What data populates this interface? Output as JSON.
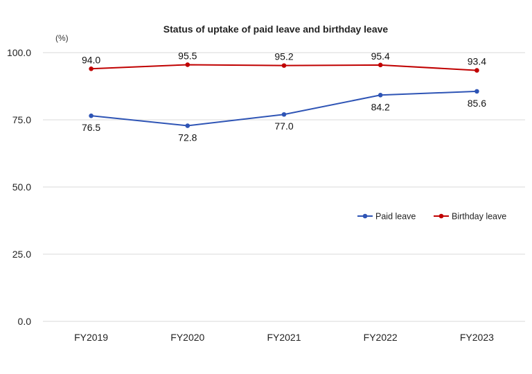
{
  "chart_data": {
    "type": "line",
    "title": "Status of uptake of paid leave and birthday leave",
    "unit_label": "(%)",
    "categories": [
      "FY2019",
      "FY2020",
      "FY2021",
      "FY2022",
      "FY2023"
    ],
    "ylim": [
      0,
      100
    ],
    "yticks": [
      "0.0",
      "25.0",
      "50.0",
      "75.0",
      "100.0"
    ],
    "grid": true,
    "legend_position": "right",
    "series": [
      {
        "name": "Paid leave",
        "color": "#2e54b5",
        "values": [
          76.5,
          72.8,
          77.0,
          84.2,
          85.6
        ],
        "labels": [
          "76.5",
          "72.8",
          "77.0",
          "84.2",
          "85.6"
        ],
        "label_side": "below"
      },
      {
        "name": "Birthday leave",
        "color": "#c00000",
        "values": [
          94.0,
          95.5,
          95.2,
          95.4,
          93.4
        ],
        "labels": [
          "94.0",
          "95.5",
          "95.2",
          "95.4",
          "93.4"
        ],
        "label_side": "above"
      }
    ]
  }
}
